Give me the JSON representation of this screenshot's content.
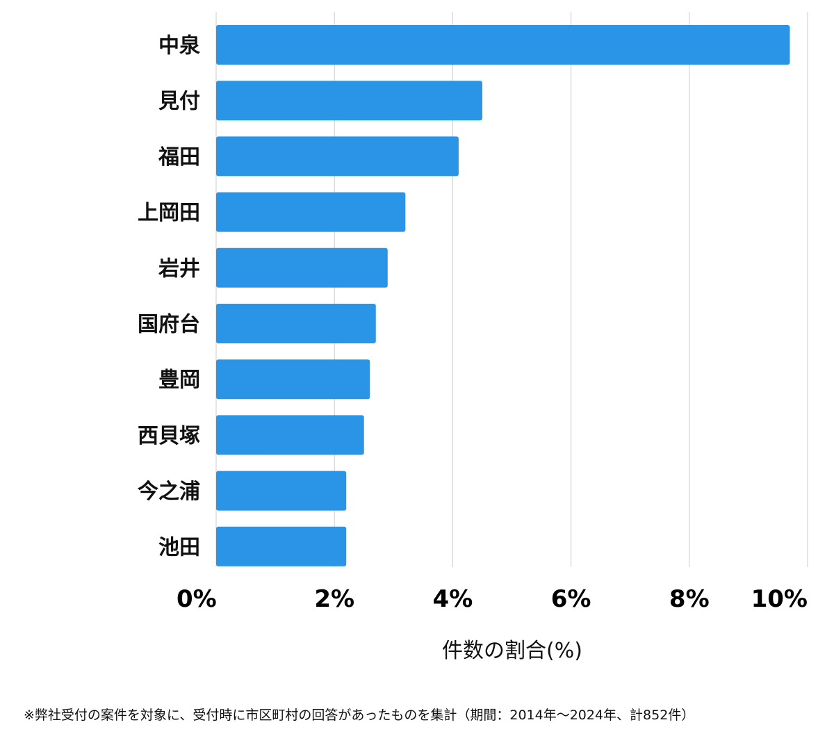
{
  "chart_data": {
    "type": "bar",
    "orientation": "horizontal",
    "categories": [
      "中泉",
      "見付",
      "福田",
      "上岡田",
      "岩井",
      "国府台",
      "豊岡",
      "西貝塚",
      "今之浦",
      "池田"
    ],
    "values": [
      9.7,
      4.5,
      4.1,
      3.2,
      2.9,
      2.7,
      2.6,
      2.5,
      2.2,
      2.2
    ],
    "xlim": [
      0,
      10
    ],
    "xticks": [
      0,
      2,
      4,
      6,
      8,
      10
    ],
    "tick_labels": [
      "0%",
      "2%",
      "4%",
      "6%",
      "8%",
      "10%"
    ],
    "xlabel": "件数の割合(%)",
    "bar_color": "#2a95e6",
    "grid": true
  },
  "footnote": "※弊社受付の案件を対象に、受付時に市区町村の回答があったものを集計（期間：2014年〜2024年、計852件）"
}
